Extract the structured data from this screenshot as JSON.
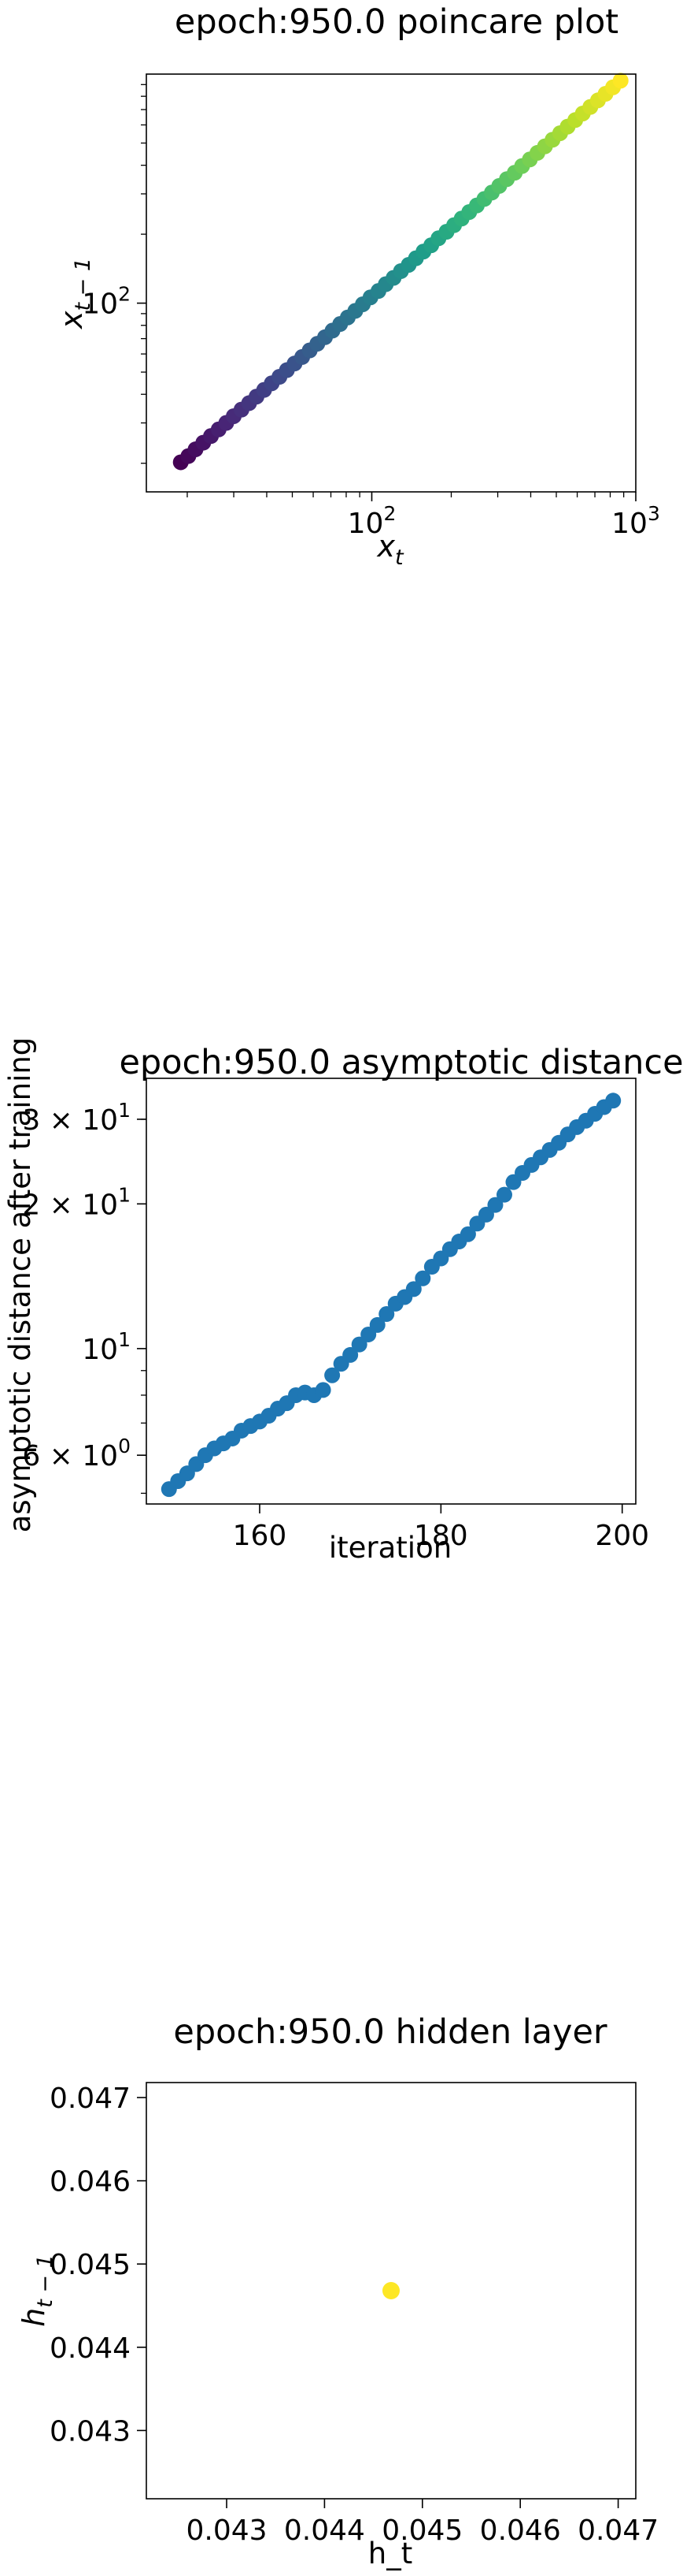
{
  "colors": {
    "series_default": "#1f77b4",
    "single_point": "#fde725",
    "axes": "#000000",
    "background": "#ffffff",
    "colormap": "viridis",
    "viridis_stops": [
      "#440154",
      "#482878",
      "#3e4989",
      "#31688e",
      "#26828e",
      "#1f9e89",
      "#35b779",
      "#6ece58",
      "#b5de2b",
      "#fde725"
    ]
  },
  "chart_data": [
    {
      "type": "scatter",
      "title": "epoch:950.0 poincare plot",
      "xlabel": "x_t",
      "ylabel": "x_{t-1}",
      "xscale": "log",
      "yscale": "log",
      "xlim": [
        14,
        1000
      ],
      "ylim": [
        15,
        1000
      ],
      "grid": false,
      "legend": "none",
      "point_color": "viridis (by index)",
      "x_ticks": [
        {
          "value": 100,
          "base": "10",
          "exp": "2"
        },
        {
          "value": 1000,
          "base": "10",
          "exp": "3"
        }
      ],
      "y_ticks": [
        {
          "value": 100,
          "base": "10",
          "exp": "2"
        }
      ],
      "x": [
        18.9,
        20.2,
        21.5,
        23.0,
        24.6,
        26.3,
        28.1,
        30.0,
        32.1,
        34.3,
        36.6,
        39.1,
        41.8,
        44.7,
        47.7,
        51.0,
        54.5,
        58.2,
        62.2,
        66.5,
        71.0,
        75.9,
        81.1,
        86.6,
        92.5,
        98.9,
        106,
        113,
        121,
        129,
        138,
        147,
        157,
        168,
        179,
        192,
        205,
        219,
        234,
        250,
        267,
        285,
        304,
        325,
        348,
        371,
        397,
        424,
        453,
        484,
        517,
        552,
        590,
        630,
        673,
        719,
        768,
        820,
        876
      ],
      "y": [
        20.2,
        21.5,
        23.0,
        24.6,
        26.3,
        28.1,
        30.0,
        32.1,
        34.3,
        36.6,
        39.1,
        41.8,
        44.7,
        47.7,
        51.0,
        54.5,
        58.2,
        62.2,
        66.5,
        71.0,
        75.9,
        81.1,
        86.6,
        92.5,
        98.9,
        106,
        113,
        121,
        129,
        138,
        147,
        157,
        168,
        179,
        192,
        205,
        219,
        234,
        250,
        267,
        285,
        304,
        325,
        348,
        371,
        397,
        424,
        453,
        484,
        517,
        552,
        590,
        630,
        673,
        719,
        768,
        820,
        876,
        936
      ]
    },
    {
      "type": "scatter",
      "title": "epoch:950.0 asymptotic distance",
      "xlabel": "iteration",
      "ylabel": "asymptotic distance after training",
      "xscale": "linear",
      "yscale": "log",
      "xlim": [
        147.5,
        201.5
      ],
      "ylim": [
        4.75,
        36.5
      ],
      "grid": false,
      "legend": "none",
      "point_color": "#1f77b4",
      "x_ticks": [
        {
          "value": 160,
          "label": "160"
        },
        {
          "value": 180,
          "label": "180"
        },
        {
          "value": 200,
          "label": "200"
        }
      ],
      "y_ticks": [
        {
          "value": 6,
          "mant": "6 × ",
          "base": "10",
          "exp": "0"
        },
        {
          "value": 10,
          "mant": "",
          "base": "10",
          "exp": "1"
        },
        {
          "value": 20,
          "mant": "2 × ",
          "base": "10",
          "exp": "1"
        },
        {
          "value": 30,
          "mant": "3 × ",
          "base": "10",
          "exp": "1"
        }
      ],
      "x": [
        150,
        151,
        152,
        153,
        154,
        155,
        156,
        157,
        158,
        159,
        160,
        161,
        162,
        163,
        164,
        165,
        166,
        167,
        168,
        169,
        170,
        171,
        172,
        173,
        174,
        175,
        176,
        177,
        178,
        179,
        180,
        181,
        182,
        183,
        184,
        185,
        186,
        187,
        188,
        189,
        190,
        191,
        192,
        193,
        194,
        195,
        196,
        197,
        198,
        199
      ],
      "y": [
        5.1,
        5.3,
        5.5,
        5.75,
        6.0,
        6.2,
        6.35,
        6.5,
        6.75,
        6.9,
        7.05,
        7.25,
        7.5,
        7.7,
        8.0,
        8.1,
        8.0,
        8.2,
        8.8,
        9.3,
        9.7,
        10.2,
        10.7,
        11.2,
        11.8,
        12.4,
        12.8,
        13.3,
        14.0,
        14.8,
        15.4,
        16.1,
        16.7,
        17.3,
        18.2,
        19.0,
        19.9,
        20.9,
        22.2,
        23.2,
        24.1,
        25.0,
        25.9,
        26.8,
        27.9,
        28.9,
        29.8,
        30.8,
        31.8,
        32.8
      ]
    },
    {
      "type": "scatter",
      "title": "epoch:950.0 hidden layer",
      "xlabel": "h_t",
      "ylabel": "h_{t-1}",
      "xscale": "linear",
      "yscale": "linear",
      "xlim": [
        0.04218,
        0.04718
      ],
      "ylim": [
        0.04218,
        0.04718
      ],
      "grid": false,
      "legend": "none",
      "point_color": "#fde725",
      "x_ticks": [
        {
          "value": 0.043,
          "label": "0.043"
        },
        {
          "value": 0.044,
          "label": "0.044"
        },
        {
          "value": 0.045,
          "label": "0.045"
        },
        {
          "value": 0.046,
          "label": "0.046"
        },
        {
          "value": 0.047,
          "label": "0.047"
        }
      ],
      "y_ticks": [
        {
          "value": 0.043,
          "label": "0.043"
        },
        {
          "value": 0.044,
          "label": "0.044"
        },
        {
          "value": 0.045,
          "label": "0.045"
        },
        {
          "value": 0.046,
          "label": "0.046"
        },
        {
          "value": 0.047,
          "label": "0.047"
        }
      ],
      "x": [
        0.04468
      ],
      "y": [
        0.04468
      ]
    }
  ]
}
